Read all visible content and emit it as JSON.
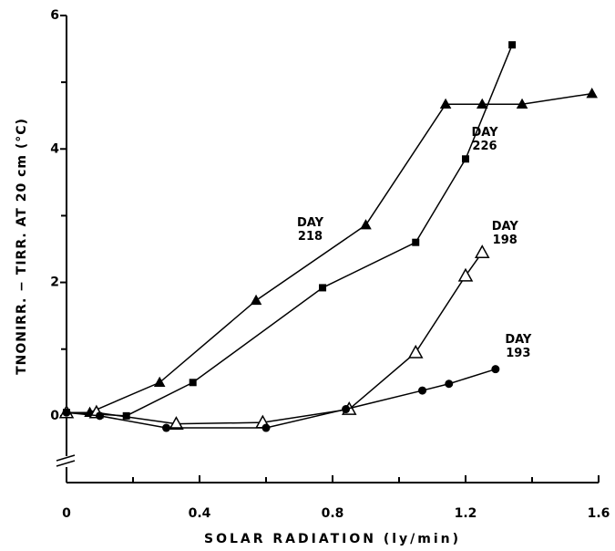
{
  "chart_data": {
    "type": "line",
    "xlabel": "SOLAR RADIATION (ly/min)",
    "ylabel": "TNONIRR. − TIRR. AT 20 cm (°C)",
    "xlim": [
      0,
      1.6
    ],
    "xticks": [
      0,
      0.4,
      0.8,
      1.2,
      1.6
    ],
    "xminorticks": [
      0.2,
      0.6,
      1.0,
      1.4
    ],
    "ylim": [
      -1,
      6
    ],
    "yticks": [
      0,
      2,
      4,
      6
    ],
    "yminorticks": [
      1,
      3,
      5
    ],
    "series": [
      {
        "name": "DAY 218",
        "color": "#000000",
        "marker": "triangle",
        "x": [
          0.07,
          0.28,
          0.57,
          0.9,
          1.14,
          1.25,
          1.37,
          1.58
        ],
        "values": [
          0.05,
          0.5,
          1.73,
          2.86,
          4.67,
          4.67,
          4.67,
          4.83
        ]
      },
      {
        "name": "DAY 226",
        "color": "#000000",
        "marker": "square",
        "x": [
          0,
          0.18,
          0.38,
          0.77,
          1.05,
          1.2,
          1.34
        ],
        "values": [
          0.05,
          0.0,
          0.5,
          1.92,
          2.6,
          3.85,
          5.56
        ]
      },
      {
        "name": "DAY 198",
        "color": "#000000",
        "marker": "open-triangle",
        "x": [
          0,
          0.09,
          0.33,
          0.59,
          0.85,
          1.05,
          1.2,
          1.25
        ],
        "values": [
          0.05,
          0.05,
          -0.12,
          -0.1,
          0.1,
          0.95,
          2.1,
          2.45
        ]
      },
      {
        "name": "DAY 193",
        "color": "#000000",
        "marker": "circle",
        "x": [
          0,
          0.1,
          0.3,
          0.6,
          0.84,
          1.07,
          1.15,
          1.29
        ],
        "values": [
          0.05,
          0.0,
          -0.18,
          -0.18,
          0.1,
          0.38,
          0.48,
          0.7
        ]
      }
    ]
  }
}
